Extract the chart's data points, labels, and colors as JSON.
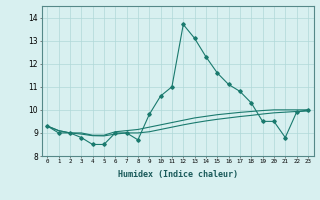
{
  "xlabel": "Humidex (Indice chaleur)",
  "x": [
    0,
    1,
    2,
    3,
    4,
    5,
    6,
    7,
    8,
    9,
    10,
    11,
    12,
    13,
    14,
    15,
    16,
    17,
    18,
    19,
    20,
    21,
    22,
    23
  ],
  "line1": [
    9.3,
    9.0,
    9.0,
    8.8,
    8.5,
    8.5,
    9.0,
    9.0,
    8.7,
    9.8,
    10.6,
    11.0,
    13.7,
    13.1,
    12.3,
    11.6,
    11.1,
    10.8,
    10.3,
    9.5,
    9.5,
    8.8,
    9.9,
    10.0
  ],
  "line2": [
    9.3,
    9.1,
    9.0,
    9.0,
    8.9,
    8.9,
    9.05,
    9.1,
    9.15,
    9.25,
    9.35,
    9.45,
    9.55,
    9.65,
    9.72,
    9.79,
    9.84,
    9.89,
    9.93,
    9.97,
    10.0,
    10.0,
    10.0,
    10.0
  ],
  "line3": [
    9.3,
    9.1,
    9.0,
    8.95,
    8.88,
    8.87,
    8.95,
    9.0,
    9.0,
    9.05,
    9.15,
    9.25,
    9.35,
    9.44,
    9.52,
    9.59,
    9.65,
    9.71,
    9.76,
    9.82,
    9.87,
    9.9,
    9.93,
    9.95
  ],
  "line_color": "#1a7a6e",
  "bg_color": "#d8f0f0",
  "grid_color": "#b0d8d8",
  "ylim": [
    8.0,
    14.5
  ],
  "xlim": [
    -0.5,
    23.5
  ],
  "yticks": [
    8,
    9,
    10,
    11,
    12,
    13,
    14
  ],
  "xticks": [
    0,
    1,
    2,
    3,
    4,
    5,
    6,
    7,
    8,
    9,
    10,
    11,
    12,
    13,
    14,
    15,
    16,
    17,
    18,
    19,
    20,
    21,
    22,
    23
  ]
}
